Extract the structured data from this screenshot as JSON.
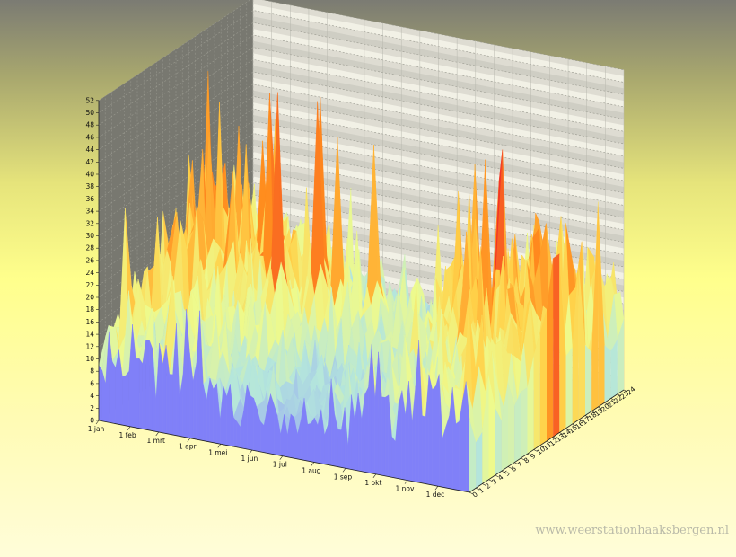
{
  "chart_data": {
    "type": "surface",
    "title": "",
    "xlabel": "",
    "ylabel": "",
    "zlabel": "",
    "x_axis": {
      "type": "date",
      "min": "01-01",
      "max": "12-31"
    },
    "x_ticks": [
      "1 jan",
      "1 feb",
      "1 mrt",
      "1 apr",
      "1 mei",
      "1 jun",
      "1 jul",
      "1 aug",
      "1 sep",
      "1 okt",
      "1 nov",
      "1 dec"
    ],
    "y_ticks": [
      "0",
      "1",
      "2",
      "3",
      "4",
      "5",
      "6",
      "7",
      "8",
      "9",
      "10",
      "11",
      "12",
      "13",
      "14",
      "15",
      "16",
      "17",
      "18",
      "19",
      "20",
      "21",
      "22",
      "23",
      "24"
    ],
    "z_ticks": [
      "0",
      "2",
      "4",
      "6",
      "8",
      "10",
      "12",
      "14",
      "16",
      "18",
      "20",
      "22",
      "24",
      "26",
      "28",
      "30",
      "32",
      "34",
      "36",
      "38",
      "40",
      "42",
      "44",
      "46",
      "48",
      "50",
      "52"
    ],
    "zlim": [
      0,
      52
    ],
    "grid": true,
    "color_scale": [
      {
        "value": 0,
        "color": "#8484ff"
      },
      {
        "value": 8,
        "color": "#b4e6dc"
      },
      {
        "value": 14,
        "color": "#eefa8c"
      },
      {
        "value": 20,
        "color": "#ffd24a"
      },
      {
        "value": 26,
        "color": "#ff8c1e"
      },
      {
        "value": 34,
        "color": "#ee1c2a"
      },
      {
        "value": 44,
        "color": "#a020c8"
      }
    ],
    "peaks": [
      {
        "date": "03-21",
        "hour": 14,
        "value": 46
      },
      {
        "date": "04-24",
        "hour": 10,
        "value": 50
      },
      {
        "date": "05-10",
        "hour": 14,
        "value": 47
      },
      {
        "date": "05-20",
        "hour": 12,
        "value": 48
      },
      {
        "date": "06-01",
        "hour": 13,
        "value": 42
      },
      {
        "date": "02-25",
        "hour": 14,
        "value": 37
      },
      {
        "date": "06-25",
        "hour": 15,
        "value": 40
      },
      {
        "date": "09-25",
        "hour": 14,
        "value": 36
      },
      {
        "date": "10-05",
        "hour": 15,
        "value": 40
      },
      {
        "date": "10-20",
        "hour": 14,
        "value": 42
      },
      {
        "date": "11-10",
        "hour": 13,
        "value": 40
      },
      {
        "date": "12-01",
        "hour": 15,
        "value": 34
      }
    ],
    "watermark": "www.weerstationhaaksbergen.nl"
  }
}
